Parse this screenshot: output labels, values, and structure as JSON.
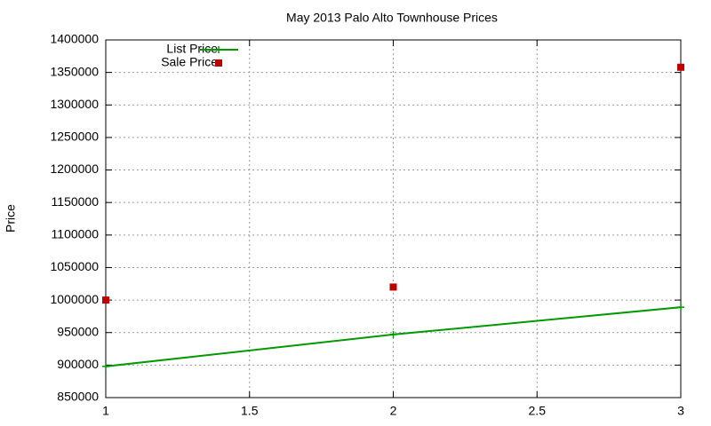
{
  "chart_data": {
    "type": "line",
    "title": "May 2013 Palo Alto Townhouse Prices",
    "y_label": "Price",
    "x": [
      1,
      2,
      3
    ],
    "series": [
      {
        "name": "List Price",
        "color": "#009900",
        "style": "linespoints",
        "values": [
          898000,
          947000,
          989000
        ]
      },
      {
        "name": "Sale Price",
        "color": "#c00000",
        "style": "points",
        "values": [
          1000000,
          1020000,
          1358000
        ]
      }
    ],
    "xlim": [
      1,
      3
    ],
    "xticks": [
      1,
      1.5,
      2,
      2.5,
      3
    ],
    "ylim": [
      850000,
      1400000
    ],
    "yticks": [
      850000,
      900000,
      950000,
      1000000,
      1050000,
      1100000,
      1150000,
      1200000,
      1250000,
      1300000,
      1350000,
      1400000
    ],
    "grid": true,
    "legend": "top-left"
  }
}
